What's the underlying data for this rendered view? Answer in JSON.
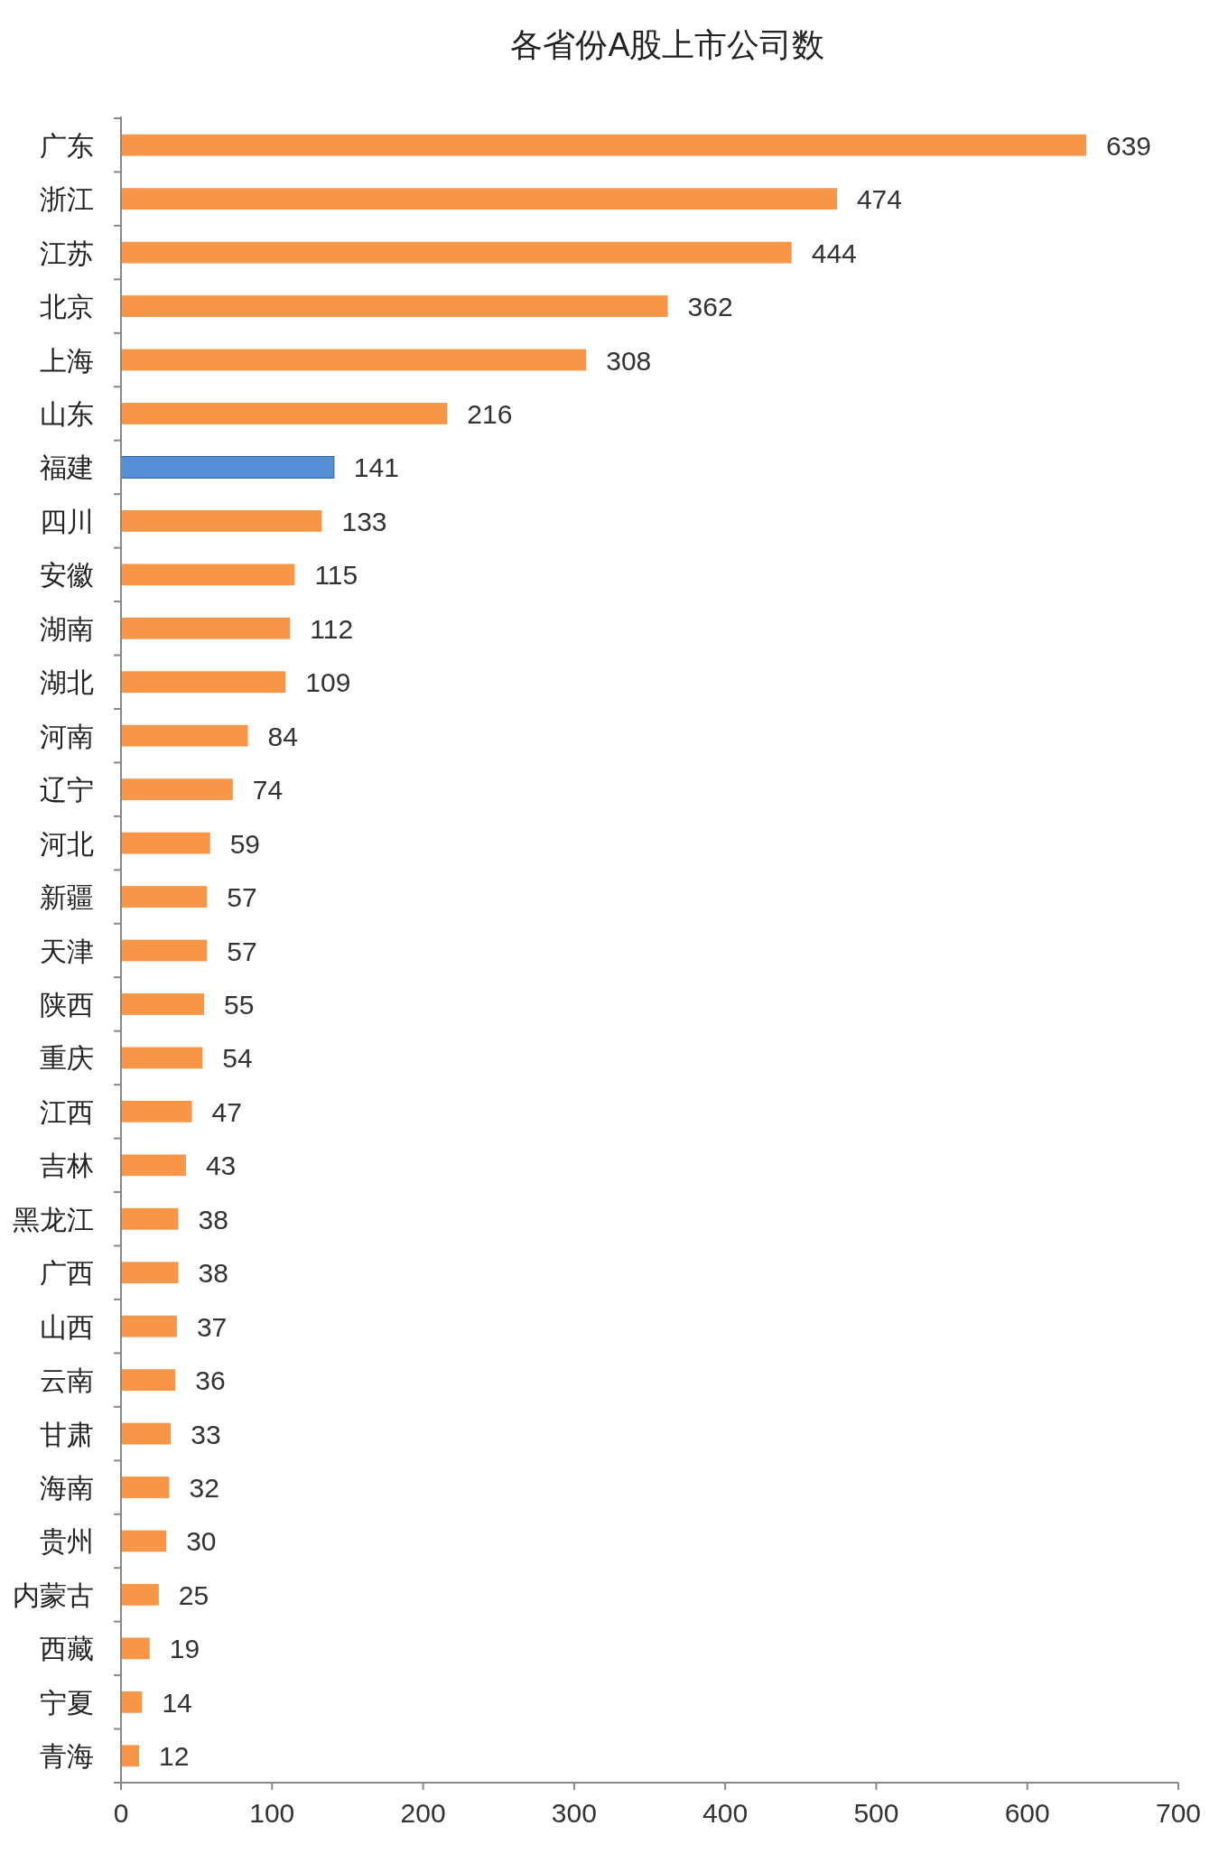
{
  "chart_data": {
    "type": "bar",
    "orientation": "horizontal",
    "title": "各省份A股上市公司数",
    "categories": [
      "广东",
      "浙江",
      "江苏",
      "北京",
      "上海",
      "山东",
      "福建",
      "四川",
      "安徽",
      "湖南",
      "湖北",
      "河南",
      "辽宁",
      "河北",
      "新疆",
      "天津",
      "陕西",
      "重庆",
      "江西",
      "吉林",
      "黑龙江",
      "广西",
      "山西",
      "云南",
      "甘肃",
      "海南",
      "贵州",
      "内蒙古",
      "西藏",
      "宁夏",
      "青海"
    ],
    "values": [
      639,
      474,
      444,
      362,
      308,
      216,
      141,
      133,
      115,
      112,
      109,
      84,
      74,
      59,
      57,
      57,
      55,
      54,
      47,
      43,
      38,
      38,
      37,
      36,
      33,
      32,
      30,
      25,
      19,
      14,
      12
    ],
    "colors": [
      "#f79646",
      "#f79646",
      "#f79646",
      "#f79646",
      "#f79646",
      "#f79646",
      "#558ed5",
      "#f79646",
      "#f79646",
      "#f79646",
      "#f79646",
      "#f79646",
      "#f79646",
      "#f79646",
      "#f79646",
      "#f79646",
      "#f79646",
      "#f79646",
      "#f79646",
      "#f79646",
      "#f79646",
      "#f79646",
      "#f79646",
      "#f79646",
      "#f79646",
      "#f79646",
      "#f79646",
      "#f79646",
      "#f79646",
      "#f79646",
      "#f79646"
    ],
    "xlim": [
      0,
      700
    ],
    "xticks": [
      0,
      100,
      200,
      300,
      400,
      500,
      600,
      700
    ],
    "data_labels": true
  }
}
